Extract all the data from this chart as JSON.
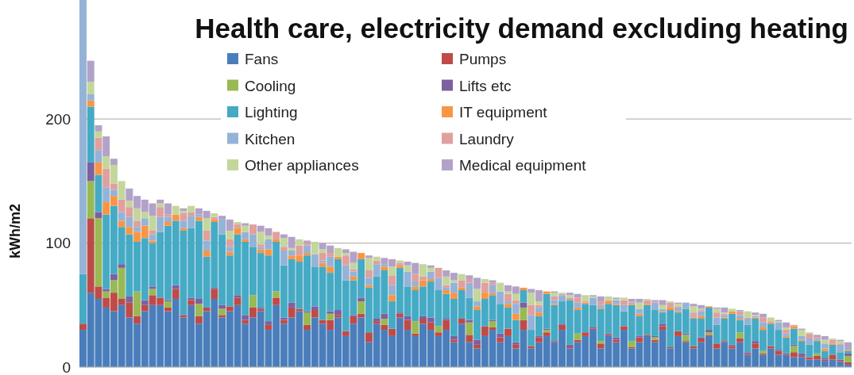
{
  "chart_data": {
    "type": "bar",
    "stacked": true,
    "title": "Health care, electricity demand excluding heating",
    "ylabel": "kWh/m2",
    "ylim": [
      0,
      296
    ],
    "yticks": [
      0,
      100,
      200
    ],
    "grid": "y",
    "legend": "top",
    "categories": [
      null,
      null,
      null,
      null,
      null,
      null,
      null,
      null,
      null,
      null,
      null,
      null,
      null,
      null,
      null,
      null,
      null,
      null,
      null,
      null,
      null,
      null,
      null,
      null,
      null,
      null,
      null,
      null,
      null,
      null,
      null,
      null,
      null,
      null,
      null,
      null,
      null,
      null,
      null,
      null,
      null,
      null,
      null,
      null,
      null,
      null,
      null,
      null,
      null,
      null,
      null,
      null,
      null,
      null,
      null,
      null,
      null,
      null,
      null,
      null,
      null,
      null,
      null,
      null,
      null,
      null,
      null,
      null,
      null,
      null,
      null,
      null,
      null,
      null,
      null,
      null,
      null,
      null,
      null,
      null,
      null,
      null,
      null,
      null,
      null,
      null,
      null,
      null,
      null,
      null,
      null,
      null,
      null,
      null,
      null,
      null,
      null,
      null,
      null,
      null
    ],
    "series": [
      {
        "name": "Fans",
        "color": "#4a7ebb",
        "values": [
          30,
          60,
          55,
          48,
          45,
          50,
          40,
          35,
          45,
          50,
          50,
          45,
          55,
          40,
          50,
          35,
          45,
          55,
          40,
          45,
          50,
          35,
          40,
          45,
          30,
          50,
          35,
          40,
          45,
          30,
          40,
          35,
          30,
          40,
          25,
          35,
          40,
          20,
          35,
          30,
          25,
          40,
          30,
          25,
          35,
          30,
          25,
          30,
          20,
          35,
          20,
          15,
          25,
          30,
          20,
          25,
          15,
          30,
          15,
          20,
          25,
          20,
          30,
          15,
          20,
          25,
          30,
          15,
          25,
          20,
          30,
          15,
          20,
          25,
          20,
          30,
          15,
          25,
          20,
          15,
          20,
          25,
          15,
          20,
          15,
          20,
          10,
          15,
          10,
          15,
          10,
          10,
          8,
          8,
          6,
          6,
          5,
          6,
          4,
          2
        ]
      },
      {
        "name": "Pumps",
        "color": "#be4b48",
        "values": [
          5,
          60,
          10,
          8,
          15,
          5,
          12,
          6,
          5,
          8,
          6,
          3,
          8,
          2,
          4,
          6,
          3,
          8,
          2,
          4,
          6,
          3,
          8,
          2,
          4,
          6,
          3,
          8,
          2,
          4,
          6,
          3,
          8,
          2,
          4,
          6,
          3,
          8,
          2,
          4,
          6,
          3,
          8,
          2,
          4,
          6,
          3,
          8,
          2,
          4,
          6,
          3,
          8,
          2,
          4,
          6,
          3,
          8,
          2,
          4,
          3,
          1,
          4,
          1,
          2,
          3,
          1,
          4,
          1,
          2,
          3,
          1,
          4,
          1,
          2,
          3,
          1,
          4,
          1,
          2,
          3,
          1,
          4,
          1,
          2,
          3,
          1,
          4,
          1,
          2,
          3,
          1,
          4,
          1,
          2,
          3,
          1,
          4,
          1,
          2
        ]
      },
      {
        "name": "Cooling",
        "color": "#98b954",
        "values": [
          0,
          30,
          55,
          5,
          10,
          25,
          0,
          20,
          0,
          5,
          0,
          5,
          0,
          0,
          0,
          10,
          0,
          0,
          5,
          0,
          0,
          0,
          10,
          0,
          0,
          5,
          0,
          0,
          0,
          10,
          0,
          0,
          5,
          0,
          0,
          0,
          10,
          0,
          0,
          5,
          0,
          0,
          0,
          10,
          0,
          0,
          5,
          0,
          0,
          0,
          10,
          0,
          0,
          5,
          0,
          0,
          0,
          10,
          0,
          0,
          2,
          0,
          0,
          0,
          5,
          0,
          0,
          2,
          0,
          0,
          0,
          5,
          0,
          0,
          2,
          0,
          0,
          0,
          5,
          0,
          0,
          2,
          0,
          0,
          0,
          5,
          0,
          0,
          2,
          0,
          0,
          0,
          5,
          0,
          0,
          2,
          0,
          0,
          0,
          5
        ]
      },
      {
        "name": "Lifts etc",
        "color": "#7d60a0",
        "values": [
          0,
          15,
          5,
          2,
          5,
          3,
          5,
          0,
          4,
          2,
          0,
          1,
          3,
          0,
          2,
          4,
          0,
          1,
          3,
          0,
          2,
          4,
          0,
          1,
          3,
          0,
          2,
          4,
          0,
          1,
          3,
          0,
          2,
          4,
          0,
          1,
          3,
          0,
          2,
          4,
          0,
          1,
          3,
          0,
          2,
          4,
          0,
          1,
          3,
          0,
          2,
          4,
          0,
          1,
          3,
          0,
          2,
          4,
          0,
          1,
          1,
          0,
          1,
          2,
          0,
          0,
          1,
          0,
          1,
          2,
          0,
          0,
          1,
          0,
          1,
          2,
          0,
          0,
          1,
          0,
          1,
          2,
          0,
          0,
          1,
          0,
          1,
          2,
          0,
          0,
          1,
          0,
          1,
          2,
          0,
          0,
          1,
          0,
          1,
          2
        ]
      },
      {
        "name": "Lighting",
        "color": "#46aac5",
        "values": [
          40,
          45,
          30,
          60,
          55,
          30,
          50,
          40,
          50,
          35,
          53,
          60,
          52,
          68,
          56,
          63,
          41,
          53,
          57,
          41,
          49,
          59,
          39,
          44,
          53,
          40,
          42,
          35,
          38,
          45,
          32,
          43,
          31,
          41,
          41,
          28,
          31,
          36,
          34,
          35,
          22,
          36,
          24,
          25,
          24,
          29,
          29,
          20,
          30,
          23,
          18,
          24,
          22,
          20,
          24,
          17,
          18,
          10,
          13,
          16,
          28,
          29,
          18,
          36,
          19,
          23,
          18,
          26,
          24,
          26,
          12,
          29,
          16,
          24,
          21,
          9,
          30,
          15,
          20,
          22,
          15,
          18,
          15,
          18,
          25,
          10,
          22,
          18,
          17,
          18,
          16,
          13,
          13,
          10,
          10,
          10,
          6,
          8,
          6,
          2
        ]
      },
      {
        "name": "IT equipment",
        "color": "#f79646",
        "values": [
          0,
          5,
          10,
          10,
          8,
          5,
          6,
          8,
          10,
          2,
          0,
          3,
          5,
          2,
          0,
          3,
          5,
          2,
          0,
          3,
          5,
          2,
          0,
          3,
          5,
          2,
          0,
          3,
          5,
          2,
          0,
          3,
          5,
          2,
          0,
          3,
          5,
          2,
          0,
          3,
          5,
          2,
          0,
          3,
          5,
          2,
          0,
          3,
          5,
          2,
          0,
          3,
          5,
          2,
          0,
          3,
          5,
          2,
          0,
          3,
          2,
          1,
          0,
          1,
          2,
          1,
          0,
          1,
          2,
          1,
          0,
          1,
          2,
          1,
          0,
          1,
          2,
          1,
          0,
          1,
          2,
          1,
          0,
          1,
          2,
          1,
          0,
          1,
          2,
          1,
          0,
          1,
          2,
          1,
          0,
          1,
          2,
          1,
          0,
          1
        ]
      },
      {
        "name": "Kitchen",
        "color": "#95b3d7",
        "values": [
          221,
          5,
          10,
          12,
          5,
          7,
          8,
          4,
          6,
          5,
          12,
          4,
          0,
          6,
          10,
          2,
          8,
          0,
          12,
          4,
          0,
          6,
          10,
          2,
          8,
          0,
          12,
          4,
          0,
          6,
          10,
          2,
          8,
          0,
          12,
          4,
          0,
          6,
          10,
          2,
          8,
          0,
          12,
          4,
          0,
          6,
          10,
          2,
          8,
          0,
          12,
          4,
          0,
          6,
          10,
          2,
          8,
          0,
          12,
          4,
          0,
          3,
          5,
          1,
          4,
          0,
          6,
          2,
          0,
          3,
          5,
          1,
          4,
          0,
          6,
          2,
          0,
          3,
          5,
          1,
          4,
          0,
          6,
          2,
          0,
          3,
          5,
          1,
          4,
          0,
          6,
          2,
          0,
          3,
          5,
          1,
          4,
          0,
          6,
          2
        ]
      },
      {
        "name": "Laundry",
        "color": "#e0a09e",
        "values": [
          0,
          0,
          10,
          15,
          5,
          10,
          8,
          5,
          0,
          3,
          8,
          2,
          0,
          6,
          3,
          0,
          8,
          2,
          0,
          6,
          3,
          0,
          8,
          2,
          0,
          6,
          3,
          0,
          8,
          2,
          0,
          6,
          3,
          0,
          8,
          2,
          0,
          6,
          3,
          0,
          8,
          2,
          0,
          6,
          3,
          0,
          8,
          2,
          0,
          6,
          3,
          0,
          8,
          2,
          0,
          6,
          3,
          0,
          8,
          2,
          0,
          3,
          1,
          0,
          4,
          1,
          0,
          3,
          1,
          0,
          4,
          1,
          0,
          3,
          1,
          0,
          4,
          1,
          0,
          3,
          1,
          0,
          4,
          1,
          0,
          3,
          1,
          0,
          4,
          1,
          0,
          3,
          1,
          0,
          4,
          1,
          0,
          3,
          1,
          0
        ]
      },
      {
        "name": "Other appliances",
        "color": "#c3d69b",
        "values": [
          0,
          10,
          5,
          10,
          15,
          15,
          5,
          10,
          5,
          12,
          3,
          0,
          7,
          2,
          5,
          0,
          10,
          3,
          0,
          7,
          2,
          5,
          0,
          10,
          3,
          0,
          7,
          2,
          5,
          0,
          10,
          3,
          0,
          7,
          2,
          5,
          0,
          10,
          3,
          0,
          7,
          2,
          5,
          0,
          10,
          3,
          0,
          7,
          2,
          5,
          0,
          10,
          3,
          0,
          7,
          2,
          5,
          0,
          10,
          3,
          0,
          3,
          1,
          2,
          0,
          5,
          1,
          0,
          3,
          1,
          2,
          0,
          5,
          1,
          0,
          3,
          1,
          2,
          0,
          5,
          1,
          0,
          3,
          1,
          2,
          0,
          5,
          1,
          0,
          3,
          1,
          2,
          0,
          5,
          1,
          0,
          3,
          1,
          2,
          0
        ]
      },
      {
        "name": "Medical equipment",
        "color": "#b3a2c7",
        "values": [
          0,
          17,
          5,
          16,
          5,
          0,
          10,
          10,
          10,
          10,
          3,
          9,
          0,
          2,
          0,
          5,
          6,
          0,
          3,
          9,
          0,
          2,
          0,
          5,
          6,
          0,
          3,
          9,
          0,
          2,
          0,
          5,
          6,
          0,
          3,
          9,
          0,
          2,
          0,
          5,
          6,
          0,
          3,
          9,
          0,
          2,
          0,
          5,
          6,
          0,
          3,
          9,
          0,
          2,
          0,
          5,
          6,
          0,
          3,
          9,
          0,
          1,
          0,
          2,
          3,
          0,
          1,
          4,
          0,
          1,
          0,
          2,
          3,
          0,
          1,
          4,
          0,
          1,
          0,
          2,
          3,
          0,
          1,
          4,
          0,
          1,
          0,
          2,
          3,
          0,
          1,
          4,
          0,
          1,
          0,
          2,
          3,
          0,
          1,
          4
        ]
      }
    ]
  }
}
